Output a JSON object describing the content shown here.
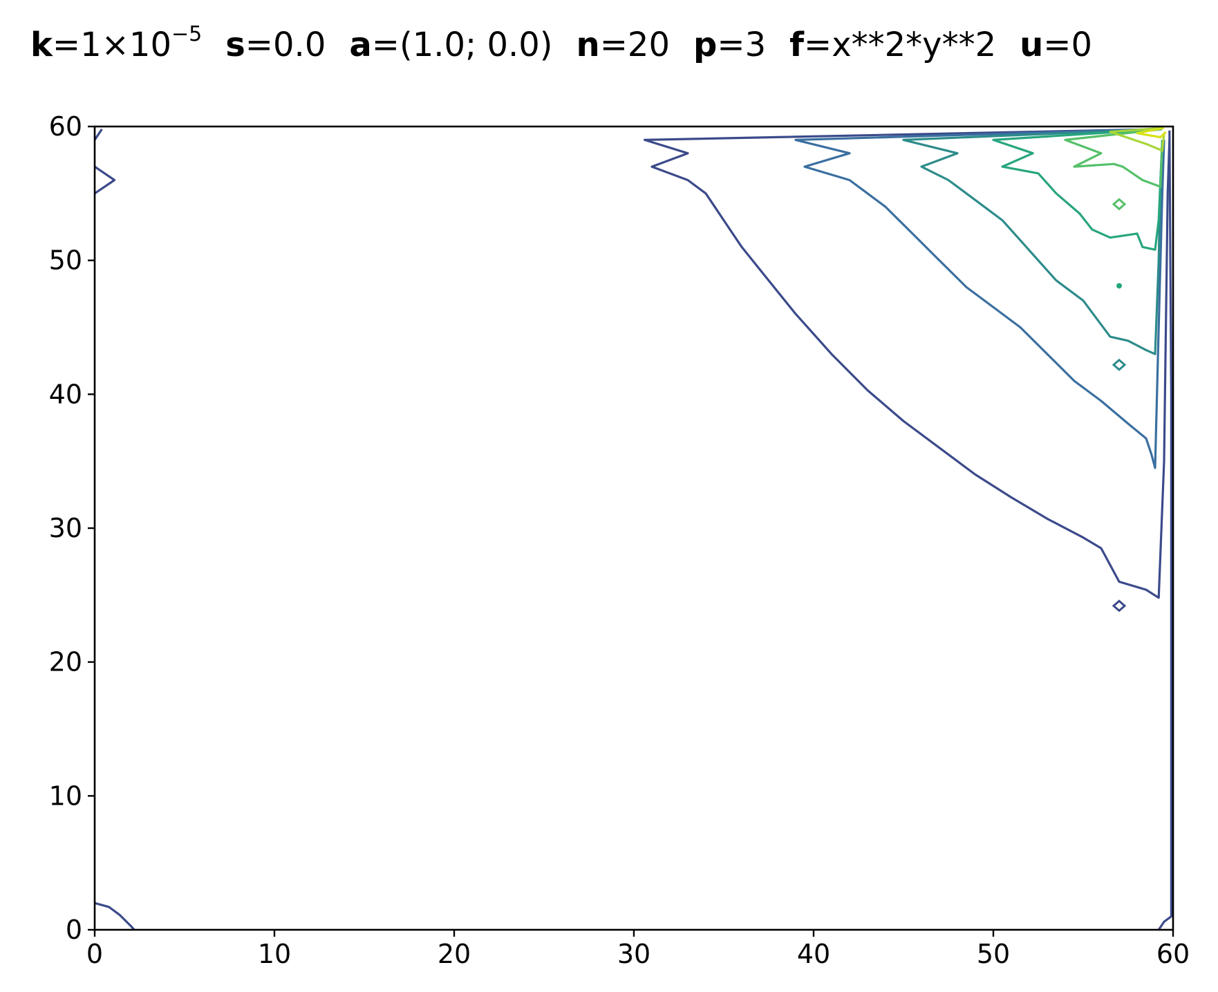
{
  "title": {
    "params": [
      {
        "key": "k",
        "eq": "=1×10",
        "sup": "−5"
      },
      {
        "key": "s",
        "eq": "=0.0",
        "sup": ""
      },
      {
        "key": "a",
        "eq": "=(1.0; 0.0)",
        "sup": ""
      },
      {
        "key": "n",
        "eq": "=20",
        "sup": ""
      },
      {
        "key": "p",
        "eq": "=3",
        "sup": ""
      },
      {
        "key": "f",
        "eq": "=x**2*y**2",
        "sup": ""
      },
      {
        "key": "u",
        "eq": "=0",
        "sup": ""
      }
    ]
  },
  "chart_data": {
    "type": "contour",
    "xlim": [
      0,
      60
    ],
    "ylim": [
      0,
      60
    ],
    "xticks": [
      0,
      10,
      20,
      30,
      40,
      50,
      60
    ],
    "yticks": [
      0,
      10,
      20,
      30,
      40,
      50,
      60
    ],
    "grid": false,
    "colormap": "viridis",
    "contours": [
      {
        "color": "#3b4a8a",
        "paths": [
          [
            [
              59,
              59.8
            ],
            [
              30.6,
              59
            ],
            [
              33,
              58
            ],
            [
              31,
              57
            ],
            [
              33,
              56
            ],
            [
              34,
              55
            ],
            [
              34.5,
              54
            ],
            [
              35,
              53
            ],
            [
              36,
              51
            ],
            [
              37.5,
              48.5
            ],
            [
              39,
              46
            ],
            [
              41,
              43
            ],
            [
              43,
              40.3
            ],
            [
              45,
              38
            ],
            [
              47,
              36
            ],
            [
              49,
              34
            ],
            [
              51,
              32.3
            ],
            [
              53,
              30.7
            ],
            [
              55,
              29.3
            ],
            [
              56,
              28.5
            ],
            [
              57,
              26
            ],
            [
              58.5,
              25.4
            ],
            [
              59.2,
              24.8
            ],
            [
              59.5,
              35
            ],
            [
              59.6,
              45
            ],
            [
              59.7,
              55
            ],
            [
              59.8,
              59
            ]
          ],
          [
            [
              59.8,
              59.7
            ],
            [
              59.9,
              40
            ],
            [
              59.9,
              20
            ],
            [
              59.9,
              1
            ],
            [
              59.5,
              0.6
            ],
            [
              59.2,
              0
            ]
          ],
          [
            [
              0,
              59
            ],
            [
              0.4,
              59.8
            ]
          ],
          [
            [
              0,
              57
            ],
            [
              1.1,
              56
            ],
            [
              0,
              55
            ]
          ],
          [
            [
              0,
              2
            ],
            [
              0.8,
              1.7
            ],
            [
              1.4,
              1.1
            ],
            [
              2,
              0.3
            ],
            [
              2.2,
              0
            ]
          ]
        ]
      },
      {
        "color": "#3a6fa0",
        "paths": [
          [
            [
              59,
              59.8
            ],
            [
              39,
              59
            ],
            [
              42,
              58
            ],
            [
              39.5,
              57
            ],
            [
              42,
              56
            ],
            [
              43,
              55
            ],
            [
              44,
              54
            ],
            [
              45.5,
              52
            ],
            [
              47,
              50
            ],
            [
              48.5,
              48
            ],
            [
              50,
              46.5
            ],
            [
              51.5,
              45
            ],
            [
              53,
              43
            ],
            [
              54.5,
              41
            ],
            [
              56,
              39.5
            ],
            [
              57.5,
              37.8
            ],
            [
              58.5,
              36.7
            ],
            [
              58.8,
              35.5
            ],
            [
              59,
              34.5
            ],
            [
              59.2,
              45
            ],
            [
              59.4,
              55
            ],
            [
              59.5,
              59
            ]
          ]
        ]
      },
      {
        "color": "#2d8c8a",
        "paths": [
          [
            [
              59.2,
              59.8
            ],
            [
              45,
              59
            ],
            [
              48,
              58
            ],
            [
              46,
              57
            ],
            [
              47.5,
              56
            ],
            [
              48.5,
              55
            ],
            [
              49.5,
              54
            ],
            [
              50.5,
              53
            ],
            [
              51.5,
              51.5
            ],
            [
              52.5,
              50
            ],
            [
              53.5,
              48.5
            ],
            [
              55,
              47
            ],
            [
              56.5,
              44.3
            ],
            [
              57.5,
              44
            ],
            [
              58.5,
              43.3
            ],
            [
              59,
              43
            ],
            [
              59.2,
              50
            ],
            [
              59.3,
              56
            ],
            [
              59.4,
              59
            ]
          ],
          [
            [
              57,
              57.8
            ]
          ]
        ]
      },
      {
        "color": "#27a57e",
        "paths": [
          [
            [
              59.3,
              59.8
            ],
            [
              50,
              59
            ],
            [
              52.2,
              58
            ],
            [
              50.5,
              57
            ],
            [
              52.5,
              56.5
            ],
            [
              53.5,
              55
            ],
            [
              54.8,
              53.5
            ],
            [
              55.5,
              52.3
            ],
            [
              56.5,
              51.7
            ],
            [
              58,
              52
            ],
            [
              58.3,
              51
            ],
            [
              59,
              50.8
            ],
            [
              59.2,
              53
            ],
            [
              59.3,
              56
            ],
            [
              59.4,
              59
            ]
          ]
        ]
      },
      {
        "color": "#55c06a",
        "paths": [
          [
            [
              59.4,
              59.8
            ],
            [
              54,
              59
            ],
            [
              56,
              58
            ],
            [
              54.5,
              57
            ],
            [
              56.7,
              57.2
            ],
            [
              57.2,
              57
            ],
            [
              58.3,
              56
            ],
            [
              59.3,
              55.5
            ],
            [
              59.4,
              59
            ]
          ]
        ]
      },
      {
        "color": "#a8d53a",
        "paths": [
          [
            [
              59.5,
              59.9
            ],
            [
              56.5,
              59.6
            ],
            [
              58.5,
              58.7
            ],
            [
              59.4,
              58.2
            ],
            [
              59.5,
              59.5
            ]
          ]
        ]
      },
      {
        "color": "#d7e219",
        "paths": [
          [
            [
              59.5,
              59.9
            ],
            [
              58,
              59.5
            ],
            [
              59.3,
              59.2
            ],
            [
              59.6,
              59.6
            ]
          ]
        ]
      }
    ],
    "markers": [
      {
        "x": 57,
        "y": 24.2,
        "color": "#3b4a8a",
        "shape": "diamond"
      },
      {
        "x": 57,
        "y": 42.2,
        "color": "#2d8c8a",
        "shape": "diamond"
      },
      {
        "x": 57,
        "y": 48.1,
        "color": "#27a57e",
        "shape": "dot"
      },
      {
        "x": 57,
        "y": 54.2,
        "color": "#55c06a",
        "shape": "diamond"
      }
    ]
  }
}
